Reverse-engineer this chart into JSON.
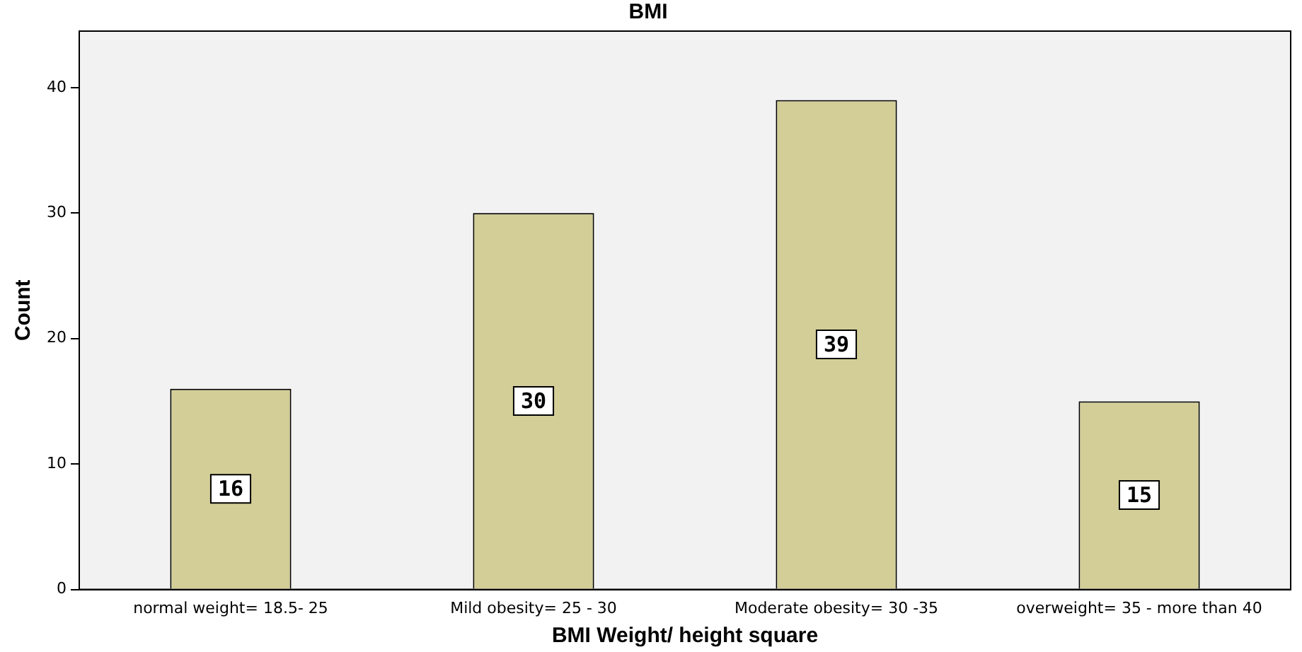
{
  "chart_data": {
    "type": "bar",
    "title": "BMI",
    "xlabel": "BMI Weight/ height square",
    "ylabel": "Count",
    "categories": [
      "normal weight= 18.5- 25",
      "Mild obesity= 25 - 30",
      "Moderate obesity= 30 -35",
      "overweight= 35 - more than 40"
    ],
    "values": [
      16,
      30,
      39,
      15
    ],
    "color": "#d3ce97",
    "ylim": [
      0,
      44.5
    ],
    "yticks": [
      0,
      10,
      20,
      30,
      40
    ],
    "grid": false,
    "data_labels": true,
    "legend": false
  }
}
